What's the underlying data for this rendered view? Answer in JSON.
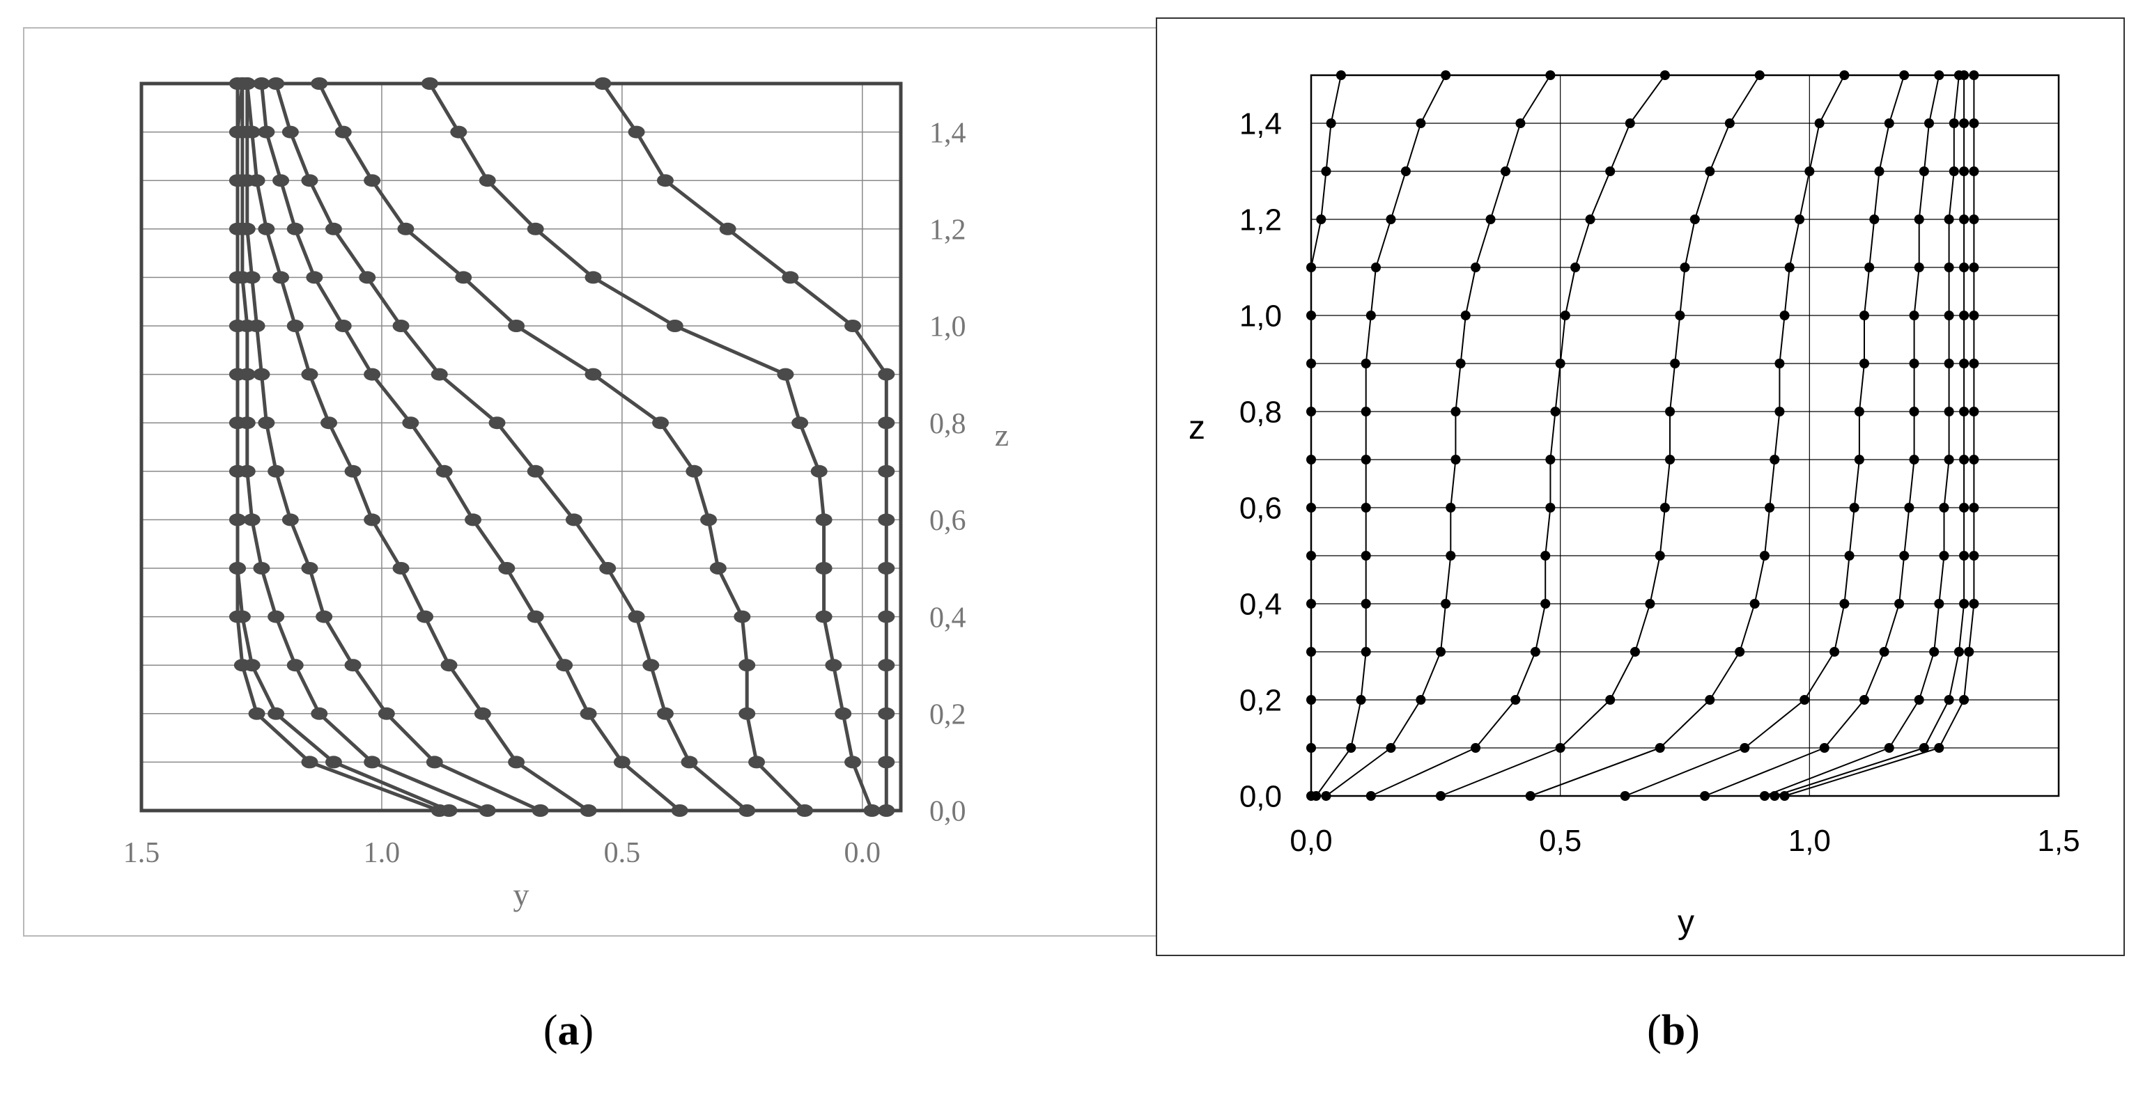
{
  "chart_data": [
    {
      "panel": "(a)",
      "type": "line",
      "xlabel": "y",
      "ylabel": "z",
      "xlim": [
        1.5,
        -0.08
      ],
      "ylim": [
        0.0,
        1.5
      ],
      "x_ticks": [
        "1.5",
        "1.0",
        "0.5",
        "0.0"
      ],
      "x_tick_values": [
        1.5,
        1.0,
        0.5,
        0.0
      ],
      "y_ticks": [
        "0,0",
        "0,2",
        "0,4",
        "0,6",
        "0,8",
        "1,0",
        "1,2",
        "1,4"
      ],
      "y_tick_values": [
        0.0,
        0.2,
        0.4,
        0.6,
        0.8,
        1.0,
        1.2,
        1.4
      ],
      "grid": "horizontal lines at 0.1 steps, vertical at 0.5 steps",
      "y_axis_side": "right",
      "line_color": "#4a4a4a",
      "z": [
        0.0,
        0.1,
        0.2,
        0.3,
        0.4,
        0.5,
        0.6,
        0.7,
        0.8,
        0.9,
        1.0,
        1.1,
        1.2,
        1.3,
        1.4,
        1.5
      ],
      "series": [
        {
          "values": [
            -0.05,
            -0.05,
            -0.05,
            -0.05,
            -0.05,
            -0.05,
            -0.05,
            -0.05,
            -0.05,
            -0.05,
            0.02,
            0.15,
            0.28,
            0.41,
            0.47,
            0.54
          ]
        },
        {
          "values": [
            -0.02,
            0.02,
            0.04,
            0.06,
            0.08,
            0.08,
            0.08,
            0.09,
            0.13,
            0.16,
            0.39,
            0.56,
            0.68,
            0.78,
            0.84,
            0.9
          ]
        },
        {
          "values": [
            0.12,
            0.22,
            0.24,
            0.24,
            0.25,
            0.3,
            0.32,
            0.35,
            0.42,
            0.56,
            0.72,
            0.83,
            0.95,
            1.02,
            1.08,
            1.13
          ]
        },
        {
          "values": [
            0.24,
            0.36,
            0.41,
            0.44,
            0.47,
            0.53,
            0.6,
            0.68,
            0.76,
            0.88,
            0.96,
            1.03,
            1.1,
            1.15,
            1.19,
            1.22
          ]
        },
        {
          "values": [
            0.38,
            0.5,
            0.57,
            0.62,
            0.68,
            0.74,
            0.81,
            0.87,
            0.94,
            1.02,
            1.08,
            1.14,
            1.18,
            1.21,
            1.24,
            1.25
          ]
        },
        {
          "values": [
            0.57,
            0.72,
            0.79,
            0.86,
            0.91,
            0.96,
            1.02,
            1.06,
            1.11,
            1.15,
            1.18,
            1.21,
            1.24,
            1.26,
            1.27,
            1.28
          ]
        },
        {
          "values": [
            0.67,
            0.89,
            0.99,
            1.06,
            1.12,
            1.15,
            1.19,
            1.22,
            1.24,
            1.25,
            1.26,
            1.27,
            1.28,
            1.28,
            1.28,
            1.28
          ]
        },
        {
          "values": [
            0.78,
            1.02,
            1.13,
            1.18,
            1.22,
            1.25,
            1.27,
            1.28,
            1.28,
            1.28,
            1.28,
            1.29,
            1.29,
            1.29,
            1.29,
            1.29
          ]
        },
        {
          "values": [
            0.86,
            1.1,
            1.22,
            1.27,
            1.29,
            1.3,
            1.3,
            1.3,
            1.3,
            1.3,
            1.3,
            1.3,
            1.3,
            1.3,
            1.3,
            1.29
          ]
        },
        {
          "values": [
            0.88,
            1.15,
            1.26,
            1.29,
            1.3,
            1.3,
            1.3,
            1.3,
            1.3,
            1.3,
            1.3,
            1.3,
            1.3,
            1.3,
            1.3,
            1.3
          ]
        }
      ]
    },
    {
      "panel": "(b)",
      "type": "line",
      "xlabel": "y",
      "ylabel": "z",
      "xlim": [
        0.0,
        1.5
      ],
      "ylim": [
        0.0,
        1.5
      ],
      "x_ticks": [
        "0,0",
        "0,5",
        "1,0",
        "1,5"
      ],
      "x_tick_values": [
        0.0,
        0.5,
        1.0,
        1.5
      ],
      "y_ticks": [
        "0,0",
        "0,2",
        "0,4",
        "0,6",
        "0,8",
        "1,0",
        "1,2",
        "1,4"
      ],
      "y_tick_values": [
        0.0,
        0.2,
        0.4,
        0.6,
        0.8,
        1.0,
        1.2,
        1.4
      ],
      "grid": "horizontal lines at 0.1 steps, vertical at 0.5 steps",
      "y_axis_side": "left",
      "line_color": "#000000",
      "z": [
        0.0,
        0.1,
        0.2,
        0.3,
        0.4,
        0.5,
        0.6,
        0.7,
        0.8,
        0.9,
        1.0,
        1.1,
        1.2,
        1.3,
        1.4,
        1.5
      ],
      "series": [
        {
          "values": [
            0.0,
            0.0,
            0.0,
            0.0,
            0.0,
            0.0,
            0.0,
            0.0,
            0.0,
            0.0,
            0.0,
            0.0,
            0.02,
            0.03,
            0.04,
            0.06
          ]
        },
        {
          "values": [
            0.01,
            0.08,
            0.1,
            0.11,
            0.11,
            0.11,
            0.11,
            0.11,
            0.11,
            0.11,
            0.12,
            0.13,
            0.16,
            0.19,
            0.22,
            0.27
          ]
        },
        {
          "values": [
            0.03,
            0.16,
            0.22,
            0.26,
            0.27,
            0.28,
            0.28,
            0.29,
            0.29,
            0.3,
            0.31,
            0.33,
            0.36,
            0.39,
            0.42,
            0.48
          ]
        },
        {
          "values": [
            0.12,
            0.33,
            0.41,
            0.45,
            0.47,
            0.47,
            0.48,
            0.48,
            0.49,
            0.5,
            0.51,
            0.53,
            0.56,
            0.6,
            0.64,
            0.71
          ]
        },
        {
          "values": [
            0.26,
            0.5,
            0.6,
            0.65,
            0.68,
            0.7,
            0.71,
            0.72,
            0.72,
            0.73,
            0.74,
            0.75,
            0.77,
            0.8,
            0.84,
            0.9
          ]
        },
        {
          "values": [
            0.44,
            0.7,
            0.8,
            0.86,
            0.89,
            0.91,
            0.92,
            0.93,
            0.94,
            0.94,
            0.95,
            0.96,
            0.98,
            1.0,
            1.02,
            1.07
          ]
        },
        {
          "values": [
            0.63,
            0.87,
            0.99,
            1.05,
            1.07,
            1.08,
            1.09,
            1.1,
            1.1,
            1.11,
            1.11,
            1.12,
            1.13,
            1.14,
            1.16,
            1.19
          ]
        },
        {
          "values": [
            0.79,
            1.03,
            1.11,
            1.15,
            1.18,
            1.19,
            1.2,
            1.21,
            1.21,
            1.21,
            1.21,
            1.22,
            1.22,
            1.23,
            1.24,
            1.26
          ]
        },
        {
          "values": [
            0.91,
            1.16,
            1.22,
            1.25,
            1.26,
            1.27,
            1.27,
            1.28,
            1.28,
            1.28,
            1.28,
            1.28,
            1.28,
            1.29,
            1.29,
            1.3
          ]
        },
        {
          "values": [
            0.93,
            1.23,
            1.28,
            1.3,
            1.31,
            1.31,
            1.31,
            1.31,
            1.31,
            1.31,
            1.31,
            1.31,
            1.31,
            1.31,
            1.31,
            1.31
          ]
        },
        {
          "values": [
            0.95,
            1.26,
            1.31,
            1.32,
            1.33,
            1.33,
            1.33,
            1.33,
            1.33,
            1.33,
            1.33,
            1.33,
            1.33,
            1.33,
            1.33,
            1.33
          ]
        }
      ]
    }
  ],
  "captions": {
    "a": {
      "open": "(",
      "letter": "a",
      "close": ")"
    },
    "b": {
      "open": "(",
      "letter": "b",
      "close": ")"
    }
  }
}
